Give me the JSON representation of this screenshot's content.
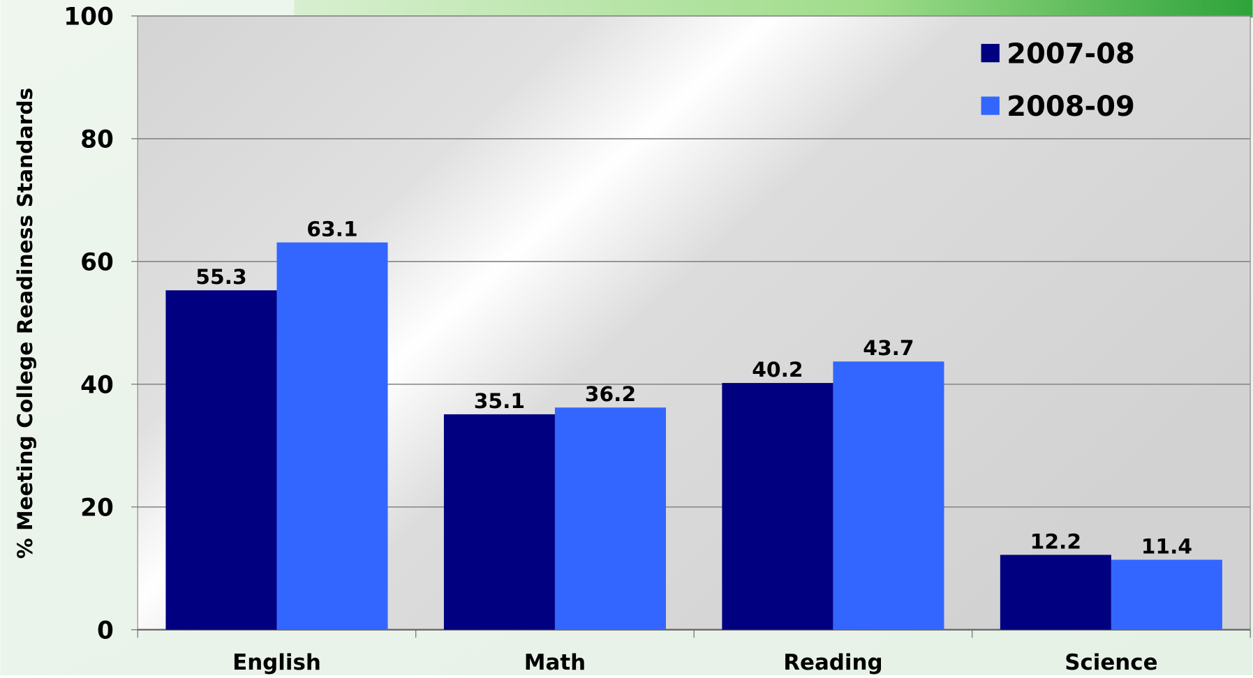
{
  "chart_data": {
    "type": "bar",
    "y_label": "% Meeting College Readiness Standards",
    "categories": [
      "English",
      "Math",
      "Reading",
      "Science"
    ],
    "series": [
      {
        "name": "2007-08",
        "color": "#000080",
        "values": [
          55.3,
          35.1,
          40.2,
          12.2
        ]
      },
      {
        "name": "2008-09",
        "color": "#3366ff",
        "values": [
          63.1,
          36.2,
          43.7,
          11.4
        ]
      }
    ],
    "ylim": [
      0,
      100
    ],
    "yticks": [
      0,
      20,
      40,
      60,
      80,
      100
    ],
    "grid": true,
    "legend": "top-right"
  }
}
